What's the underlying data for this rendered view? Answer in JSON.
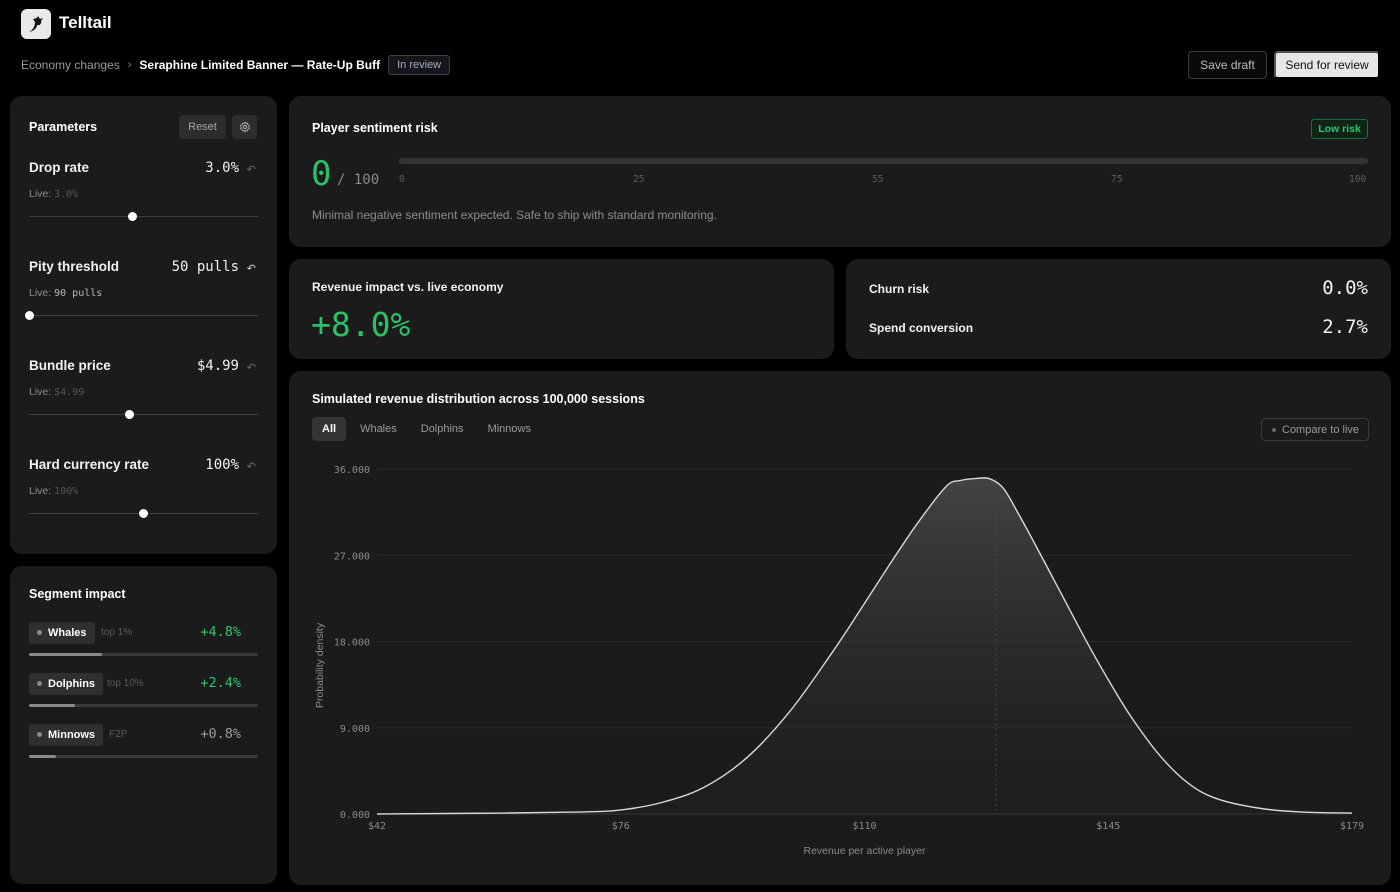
{
  "app": {
    "name": "Telltail",
    "logo_icon": "dragon-logo-icon"
  },
  "breadcrumb": {
    "parent": "Economy changes",
    "separator": "›",
    "current": "Seraphine Limited Banner — Rate-Up Buff",
    "status": "In review"
  },
  "actions": {
    "save_draft": "Save draft",
    "send_review": "Send for review"
  },
  "parameters": {
    "title": "Parameters",
    "reset_label": "Reset",
    "items": [
      {
        "name": "Drop rate",
        "value": "3.0%",
        "live_label": "Live:",
        "live_value": "3.0%",
        "changed": false,
        "position": 0.45
      },
      {
        "name": "Pity threshold",
        "value": "50 pulls",
        "live_label": "Live:",
        "live_value": "90 pulls",
        "changed": true,
        "position": 0.0
      },
      {
        "name": "Bundle price",
        "value": "$4.99",
        "live_label": "Live:",
        "live_value": "$4.99",
        "changed": false,
        "position": 0.44
      },
      {
        "name": "Hard currency rate",
        "value": "100%",
        "live_label": "Live:",
        "live_value": "100%",
        "changed": false,
        "position": 0.5
      }
    ]
  },
  "segments": {
    "title": "Segment impact",
    "items": [
      {
        "name": "Whales",
        "sub": "top 1%",
        "value": "+4.8%",
        "tone": "pos",
        "share": 0.32
      },
      {
        "name": "Dolphins",
        "sub": "top 10%",
        "value": "+2.4%",
        "tone": "pos",
        "share": 0.2
      },
      {
        "name": "Minnows",
        "sub": "F2P",
        "value": "+0.8%",
        "tone": "neutral",
        "share": 0.12
      }
    ]
  },
  "sentiment": {
    "title": "Player sentiment risk",
    "badge": "Low risk",
    "score": "0",
    "max": "/ 100",
    "ticks": [
      "0",
      "25",
      "55",
      "75",
      "100"
    ],
    "description": "Minimal negative sentiment expected. Safe to ship with standard monitoring."
  },
  "revenue": {
    "label": "Revenue impact vs. live economy",
    "value": "+8.0%"
  },
  "metrics": [
    {
      "label": "Churn risk",
      "value": "0.0%"
    },
    {
      "label": "Spend conversion",
      "value": "2.7%"
    }
  ],
  "distribution": {
    "title": "Simulated revenue distribution across 100,000 sessions",
    "tabs": [
      "All",
      "Whales",
      "Dolphins",
      "Minnows"
    ],
    "active_tab": "All",
    "compare_label": "Compare to live"
  },
  "colors": {
    "positive": "#2cc068",
    "accent_bg": "#1b1b1b"
  },
  "chart_data": {
    "type": "area",
    "xlabel": "Revenue per active player",
    "ylabel": "Probability density",
    "x_ticks": [
      "$42",
      "$76",
      "$110",
      "$145",
      "$179"
    ],
    "y_ticks": [
      "0.000",
      "9.000",
      "18.000",
      "27.000",
      "36.000"
    ],
    "xlim": [
      42,
      179
    ],
    "ylim": [
      0,
      36
    ],
    "grid": true,
    "peak_marker_x": 129,
    "series": [
      {
        "x": [
          42,
          60,
          70,
          76,
          82,
          88,
          94,
          100,
          106,
          110,
          114,
          118,
          122,
          124,
          126,
          128,
          130,
          132,
          134,
          138,
          142,
          145,
          148,
          152,
          156,
          160,
          166,
          172,
          179
        ],
        "values": [
          0.0,
          0.1,
          0.2,
          0.4,
          1.2,
          2.8,
          5.9,
          10.7,
          16.9,
          21.4,
          26.0,
          30.4,
          34.2,
          34.8,
          35.0,
          35.0,
          34.0,
          31.5,
          28.8,
          23.2,
          17.6,
          13.7,
          10.1,
          6.1,
          3.2,
          1.6,
          0.6,
          0.2,
          0.1
        ]
      }
    ]
  }
}
